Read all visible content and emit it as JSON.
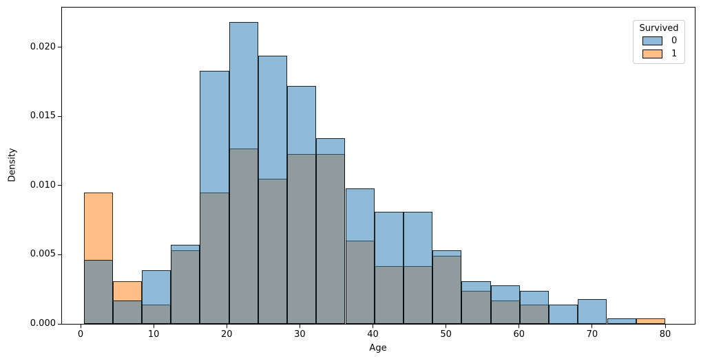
{
  "colors": {
    "survived0_fill": "rgba(31,119,180,0.5)",
    "survived0_legend": "#8fbbd9",
    "survived1_fill": "#ffbe86",
    "survived1_legend": "#ffbe86",
    "overlap_observed": "#8f9b9d",
    "bar_edge": "rgba(0,0,0,0.8)",
    "legend_border": "#cccccc",
    "spine": "#000000"
  },
  "chart_data": {
    "type": "histogram",
    "stat": "density",
    "multiple": "layer (overlapping, alpha-blended)",
    "title": "",
    "xlabel": "Age",
    "ylabel": "Density",
    "bin_start": 0.42,
    "bin_width": 3.979,
    "n_bins": 20,
    "xlim": [
      -2.6,
      84.0
    ],
    "ylim": [
      0,
      0.0229
    ],
    "grid": false,
    "x_ticks": [
      0,
      10,
      20,
      30,
      40,
      50,
      60,
      70,
      80
    ],
    "x_tick_labels": [
      "0",
      "10",
      "20",
      "30",
      "40",
      "50",
      "60",
      "70",
      "80"
    ],
    "y_ticks": [
      0.0,
      0.005,
      0.01,
      0.015,
      0.02
    ],
    "y_tick_labels": [
      "0.000",
      "0.005",
      "0.010",
      "0.015",
      "0.020"
    ],
    "legend": {
      "title": "Survived",
      "position": "upper right"
    },
    "series": [
      {
        "name": "0",
        "legend_label": "0",
        "z": 2,
        "fill": "rgba(31,119,180,0.5)",
        "legend_color": "#8fbbd9",
        "values": [
          0.0046,
          0.0017,
          0.0039,
          0.0057,
          0.0183,
          0.0218,
          0.0194,
          0.0172,
          0.0134,
          0.0098,
          0.0081,
          0.0081,
          0.0053,
          0.0031,
          0.0028,
          0.0024,
          0.0014,
          0.0018,
          0.0004,
          0
        ]
      },
      {
        "name": "1",
        "legend_label": "1",
        "z": 1,
        "fill": "#ffbe86",
        "legend_color": "#ffbe86",
        "values": [
          0.0095,
          0.0031,
          0.0014,
          0.0053,
          0.0095,
          0.0127,
          0.0105,
          0.0123,
          0.0123,
          0.006,
          0.0042,
          0.0042,
          0.0049,
          0.0024,
          0.0017,
          0.0014,
          0,
          0,
          0,
          0.0004
        ]
      }
    ]
  }
}
